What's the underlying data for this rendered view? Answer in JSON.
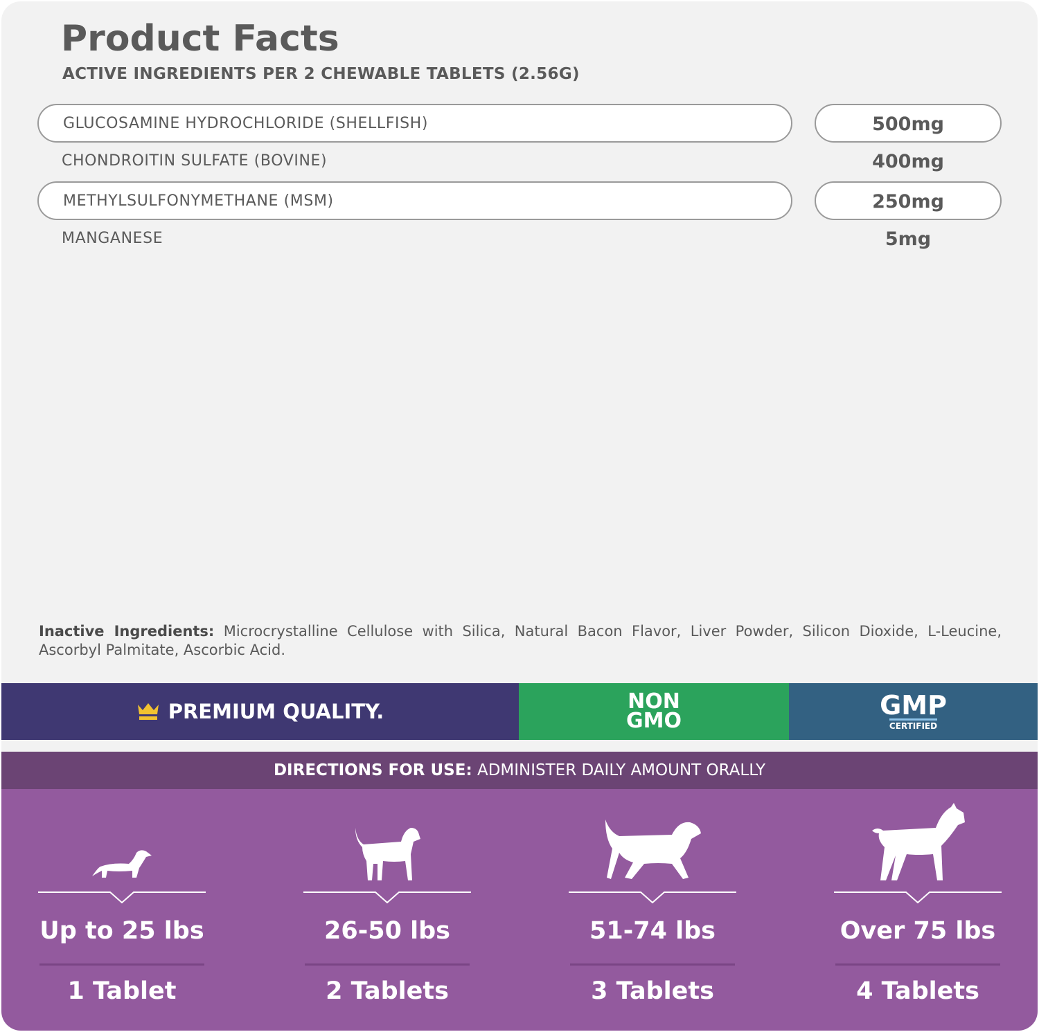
{
  "title": "Product Facts",
  "subtitle": "ACTIVE INGREDIENTS PER 2 CHEWABLE TABLETS (2.56G)",
  "ingredients": [
    {
      "name": "GLUCOSAMINE HYDROCHLORIDE (SHELLFISH)",
      "amount": "500mg"
    },
    {
      "name": "CHONDROITIN SULFATE (BOVINE)",
      "amount": "400mg"
    },
    {
      "name": "METHYLSULFONYMETHANE (MSM)",
      "amount": "250mg"
    },
    {
      "name": "MANGANESE",
      "amount": "5mg"
    }
  ],
  "inactive": {
    "label": "Inactive Ingredients:",
    "text": " Microcrystalline Cellulose with Silica, Natural Bacon Flavor, Liver Powder, Silicon Dioxide, L-Leucine, Ascorbyl Palmitate, Ascorbic Acid."
  },
  "badges": {
    "premium": "PREMIUM QUALITY.",
    "non": "NON",
    "gmo": "GMO",
    "gmp": "GMP",
    "certified": "CERTIFIED",
    "colors": {
      "premium": "#3f3872",
      "nongmo": "#2ba35c",
      "gmp": "#336182",
      "crown": "#f2c230"
    }
  },
  "directions": {
    "label": "DIRECTIONS FOR USE:",
    "text": " ADMINISTER DAILY AMOUNT ORALLY"
  },
  "doses": [
    {
      "weight": "Up to 25 lbs",
      "tablets": "1 Tablet",
      "icon": "dachshund-icon"
    },
    {
      "weight": "26-50 lbs",
      "tablets": "2 Tablets",
      "icon": "medium-dog-icon"
    },
    {
      "weight": "51-74 lbs",
      "tablets": "3 Tablets",
      "icon": "retriever-icon"
    },
    {
      "weight": "Over 75 lbs",
      "tablets": "4 Tablets",
      "icon": "boxer-icon"
    }
  ]
}
